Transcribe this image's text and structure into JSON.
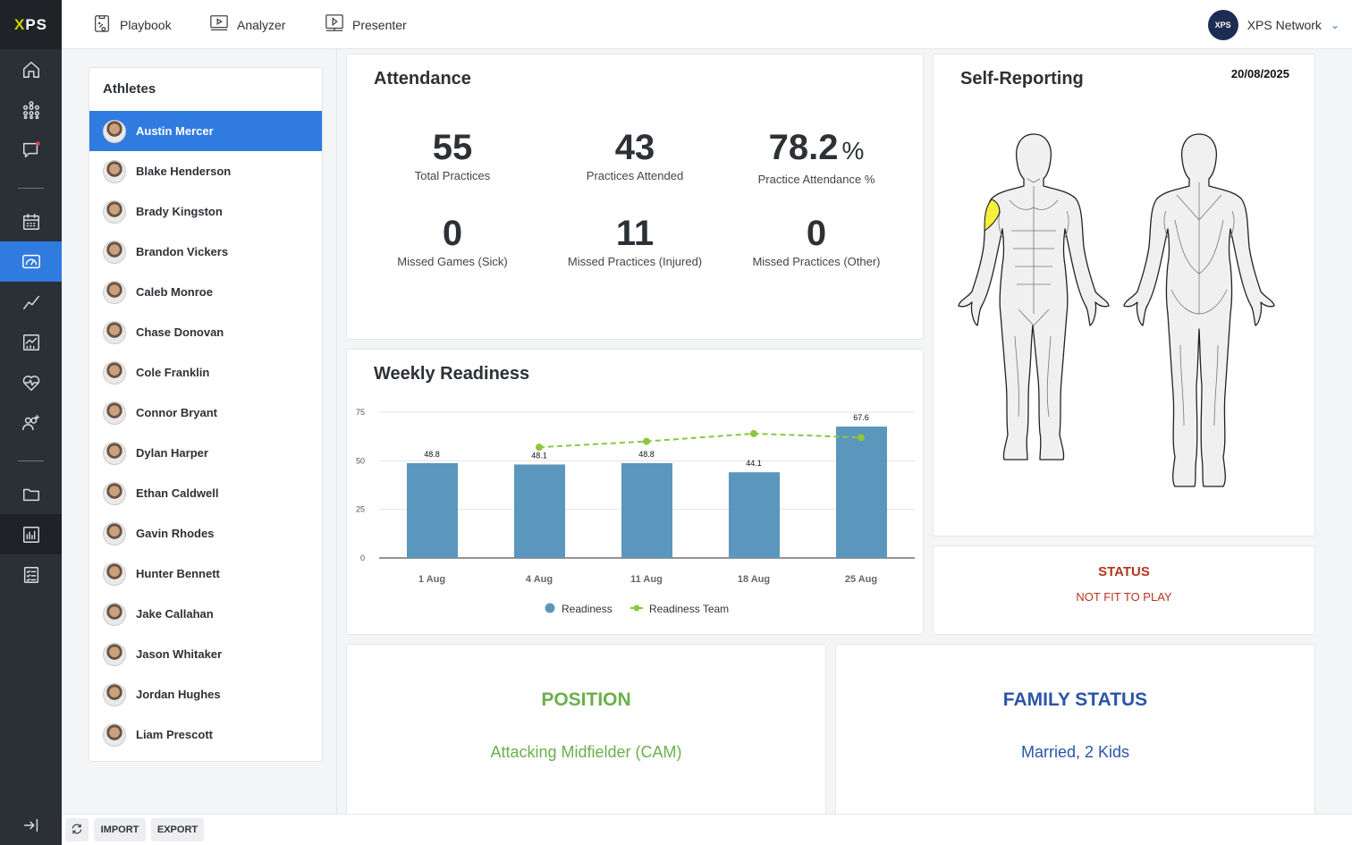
{
  "app": {
    "logo": "XPS"
  },
  "rail": {
    "icons": [
      "home-icon",
      "team-icon",
      "messages-icon",
      "calendar-icon",
      "dashboard-icon",
      "trend-icon",
      "reports-icon",
      "health-icon",
      "add-users-icon",
      "folder-icon",
      "stats-icon",
      "checklist-icon",
      "collapse-icon"
    ]
  },
  "topnav": {
    "items": [
      {
        "label": "Playbook",
        "icon": "playbook-icon"
      },
      {
        "label": "Analyzer",
        "icon": "analyzer-icon"
      },
      {
        "label": "Presenter",
        "icon": "presenter-icon"
      }
    ],
    "network": {
      "badge": "XPS",
      "label": "XPS Network"
    }
  },
  "athletes": {
    "title": "Athletes",
    "items": [
      "Austin Mercer",
      "Blake Henderson",
      "Brady Kingston",
      "Brandon Vickers",
      "Caleb Monroe",
      "Chase Donovan",
      "Cole Franklin",
      "Connor Bryant",
      "Dylan Harper",
      "Ethan Caldwell",
      "Gavin Rhodes",
      "Hunter Bennett",
      "Jake Callahan",
      "Jason Whitaker",
      "Jordan Hughes",
      "Liam Prescott"
    ],
    "selected": 0
  },
  "attendance": {
    "title": "Attendance",
    "stats": [
      {
        "value": "55",
        "unit": "",
        "label": "Total Practices"
      },
      {
        "value": "43",
        "unit": "",
        "label": "Practices Attended"
      },
      {
        "value": "78.2",
        "unit": "%",
        "label": "Practice Attendance %"
      },
      {
        "value": "0",
        "unit": "",
        "label": "Missed Games (Sick)"
      },
      {
        "value": "11",
        "unit": "",
        "label": "Missed Practices (Injured)"
      },
      {
        "value": "0",
        "unit": "",
        "label": "Missed Practices (Other)"
      }
    ]
  },
  "readiness": {
    "title": "Weekly Readiness"
  },
  "chart_data": {
    "type": "bar",
    "title": "Weekly Readiness",
    "categories": [
      "1 Aug",
      "4 Aug",
      "11 Aug",
      "18 Aug",
      "25 Aug"
    ],
    "series": [
      {
        "name": "Readiness",
        "kind": "bar",
        "color": "#5b96bd",
        "values": [
          48.8,
          48.1,
          48.8,
          44.1,
          67.6
        ]
      },
      {
        "name": "Readiness Team",
        "kind": "line",
        "color": "#8dc63f",
        "values": [
          null,
          57,
          60,
          64,
          62
        ]
      }
    ],
    "yticks": [
      0,
      25,
      50,
      75
    ],
    "ylim": [
      0,
      75
    ],
    "legend": "bottom",
    "grid": true
  },
  "self_reporting": {
    "title": "Self-Reporting",
    "date": "20/08/2025",
    "highlight_color": "#f5f03a"
  },
  "status": {
    "heading": "STATUS",
    "value": "NOT FIT TO PLAY",
    "color": "#b3361f"
  },
  "position": {
    "heading": "POSITION",
    "value": "Attacking Midfielder (CAM)",
    "color": "#6ab04c"
  },
  "family": {
    "heading": "FAMILY STATUS",
    "value": "Married, 2 Kids",
    "color": "#2b55a8"
  },
  "bottombar": {
    "refresh_icon": "refresh-icon",
    "import": "IMPORT",
    "export": "EXPORT"
  }
}
